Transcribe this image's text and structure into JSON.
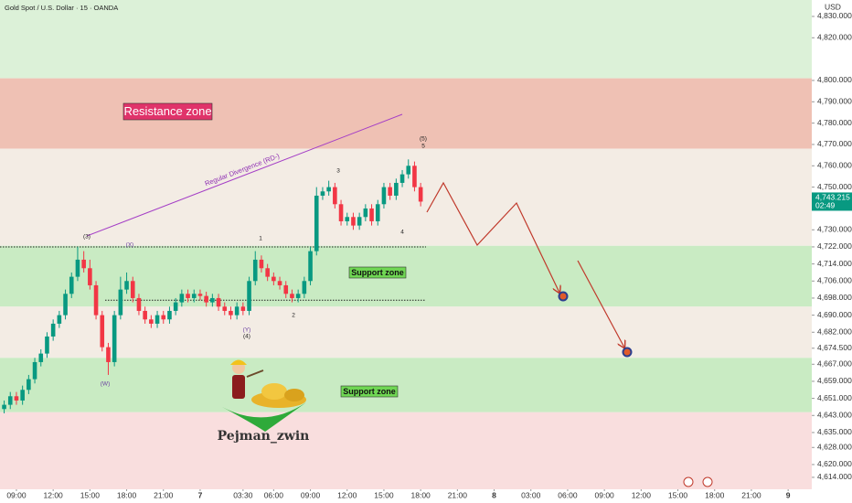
{
  "chart_data": {
    "type": "candlestick",
    "title": "Gold Spot / U.S. Dollar · 15 · OANDA",
    "currency": "USD",
    "up_color": "#089981",
    "down_color": "#f23645",
    "xlim": [
      -1.34,
      64.93
    ],
    "ylim": [
      4608.4,
      4837.7
    ],
    "xticks": [
      {
        "value": 0,
        "label": "09:00"
      },
      {
        "value": 3,
        "label": "12:00"
      },
      {
        "value": 6,
        "label": "15:00"
      },
      {
        "value": 9,
        "label": "18:00"
      },
      {
        "value": 12,
        "label": "21:00"
      },
      {
        "value": 15,
        "label": "7"
      },
      {
        "value": 18.5,
        "label": "03:30"
      },
      {
        "value": 21,
        "label": "06:00"
      },
      {
        "value": 24,
        "label": "09:00"
      },
      {
        "value": 27,
        "label": "12:00"
      },
      {
        "value": 30,
        "label": "15:00"
      },
      {
        "value": 33,
        "label": "18:00"
      },
      {
        "value": 36,
        "label": "21:00"
      },
      {
        "value": 39,
        "label": "8"
      },
      {
        "value": 42,
        "label": "03:00"
      },
      {
        "value": 45,
        "label": "06:00"
      },
      {
        "value": 48,
        "label": "09:00"
      },
      {
        "value": 51,
        "label": "12:00"
      },
      {
        "value": 54,
        "label": "15:00"
      },
      {
        "value": 57,
        "label": "18:00"
      },
      {
        "value": 60,
        "label": "21:00"
      },
      {
        "value": 63,
        "label": "9"
      }
    ],
    "yticks": [
      {
        "value": 4830,
        "label": "4,830.000"
      },
      {
        "value": 4820,
        "label": "4,820.000"
      },
      {
        "value": 4800,
        "label": "4,800.000"
      },
      {
        "value": 4790,
        "label": "4,790.000"
      },
      {
        "value": 4780,
        "label": "4,780.000"
      },
      {
        "value": 4770,
        "label": "4,770.000"
      },
      {
        "value": 4760,
        "label": "4,760.000"
      },
      {
        "value": 4750,
        "label": "4,750.000"
      },
      {
        "value": 4730,
        "label": "4,730.000"
      },
      {
        "value": 4722,
        "label": "4,722.000"
      },
      {
        "value": 4714,
        "label": "4,714.000"
      },
      {
        "value": 4706,
        "label": "4,706.000"
      },
      {
        "value": 4698,
        "label": "4,698.000"
      },
      {
        "value": 4690,
        "label": "4,690.000"
      },
      {
        "value": 4682,
        "label": "4,682.000"
      },
      {
        "value": 4674.5,
        "label": "4,674.500"
      },
      {
        "value": 4667,
        "label": "4,667.000"
      },
      {
        "value": 4659,
        "label": "4,659.000"
      },
      {
        "value": 4651,
        "label": "4,651.000"
      },
      {
        "value": 4643,
        "label": "4,643.000"
      },
      {
        "value": 4635,
        "label": "4,635.000"
      },
      {
        "value": 4628,
        "label": "4,628.000"
      },
      {
        "value": 4620,
        "label": "4,620.000"
      },
      {
        "value": 4614,
        "label": "4,614.000"
      }
    ],
    "last_price": {
      "value": 4743.215,
      "label": "4,743.215"
    },
    "countdown": "02:49",
    "zones": [
      {
        "from": 4801,
        "to": 4837.7,
        "color": "#dcf1d8"
      },
      {
        "from": 4768,
        "to": 4801,
        "color": "#efc1b4",
        "label": "Resistance zone"
      },
      {
        "from": 4722.5,
        "to": 4768,
        "color": "#f3ece4"
      },
      {
        "from": 4694,
        "to": 4722.5,
        "color": "#c9ebc3",
        "label": "Support zone"
      },
      {
        "from": 4670,
        "to": 4694,
        "color": "#f3ece4"
      },
      {
        "from": 4644.5,
        "to": 4670,
        "color": "#c9ebc3",
        "label": "Support zone"
      },
      {
        "from": 4608.4,
        "to": 4644.5,
        "color": "#f9dede"
      }
    ],
    "levels": [
      4722,
      4697
    ],
    "divergence_label": "Regular Divergence (RD-)",
    "wave_labels": [
      "(3)",
      "(X)",
      "1",
      "(Y)",
      "(4)",
      "2",
      "3",
      "4",
      "(5)",
      "5",
      "(W)"
    ],
    "author": "Pejman_zwin",
    "x": [
      -1,
      -0.5,
      0,
      0.5,
      1,
      1.5,
      2,
      2.5,
      3,
      3.5,
      4,
      4.5,
      5,
      5.5,
      6,
      6.5,
      7,
      7.5,
      8,
      8.5,
      9,
      9.5,
      10,
      10.5,
      11,
      11.5,
      12,
      12.5,
      13,
      13.5,
      14,
      14.5,
      15,
      15.5,
      16,
      16.5,
      17,
      17.5,
      18,
      18.5,
      19,
      19.5,
      20,
      20.5,
      21,
      21.5,
      22,
      22.5,
      23,
      23.5,
      24,
      24.5,
      25,
      25.5,
      26,
      26.5,
      27,
      27.5,
      28,
      28.5,
      29,
      29.5,
      30,
      30.5,
      31,
      31.5,
      32,
      32.5,
      33
    ],
    "open": [
      4646,
      4648,
      4652,
      4650,
      4655,
      4660,
      4668,
      4672,
      4680,
      4686,
      4690,
      4700,
      4708,
      4716,
      4712,
      4704,
      4690,
      4675,
      4668,
      4690,
      4702,
      4706,
      4698,
      4692,
      4688,
      4686,
      4690,
      4688,
      4692,
      4696,
      4700,
      4698,
      4700,
      4699,
      4696,
      4698,
      4694,
      4692,
      4690,
      4694,
      4692,
      4706,
      4716,
      4712,
      4708,
      4706,
      4704,
      4700,
      4698,
      4700,
      4706,
      4720,
      4746,
      4748,
      4750,
      4742,
      4734,
      4736,
      4732,
      4736,
      4740,
      4734,
      4742,
      4750,
      4746,
      4752,
      4756,
      4760,
      4750
    ],
    "high": [
      4650,
      4654,
      4654,
      4657,
      4662,
      4670,
      4674,
      4682,
      4688,
      4692,
      4702,
      4710,
      4722,
      4720,
      4716,
      4706,
      4692,
      4677,
      4692,
      4708,
      4710,
      4708,
      4700,
      4694,
      4690,
      4692,
      4692,
      4694,
      4698,
      4702,
      4702,
      4702,
      4702,
      4701,
      4700,
      4700,
      4696,
      4694,
      4696,
      4696,
      4708,
      4720,
      4718,
      4714,
      4710,
      4708,
      4706,
      4702,
      4702,
      4708,
      4722,
      4750,
      4750,
      4753,
      4752,
      4744,
      4738,
      4738,
      4738,
      4742,
      4742,
      4744,
      4752,
      4752,
      4754,
      4758,
      4763,
      4762,
      4752
    ],
    "low": [
      4644,
      4646,
      4648,
      4648,
      4653,
      4658,
      4666,
      4670,
      4678,
      4684,
      4688,
      4698,
      4706,
      4710,
      4702,
      4688,
      4673,
      4662,
      4666,
      4688,
      4700,
      4696,
      4690,
      4686,
      4684,
      4684,
      4686,
      4686,
      4690,
      4694,
      4696,
      4696,
      4697,
      4694,
      4694,
      4692,
      4690,
      4688,
      4688,
      4690,
      4690,
      4704,
      4710,
      4706,
      4704,
      4702,
      4698,
      4696,
      4696,
      4698,
      4704,
      4718,
      4744,
      4746,
      4740,
      4732,
      4732,
      4730,
      4730,
      4734,
      4732,
      4732,
      4740,
      4744,
      4744,
      4750,
      4754,
      4748,
      4741
    ],
    "close": [
      4648,
      4652,
      4650,
      4655,
      4660,
      4668,
      4672,
      4680,
      4686,
      4690,
      4700,
      4708,
      4716,
      4712,
      4704,
      4690,
      4675,
      4668,
      4690,
      4702,
      4706,
      4698,
      4692,
      4688,
      4686,
      4690,
      4688,
      4692,
      4696,
      4700,
      4698,
      4700,
      4699,
      4696,
      4698,
      4694,
      4692,
      4690,
      4694,
      4692,
      4706,
      4716,
      4712,
      4708,
      4706,
      4704,
      4700,
      4698,
      4700,
      4706,
      4720,
      4746,
      4748,
      4750,
      4742,
      4734,
      4736,
      4732,
      4736,
      4740,
      4734,
      4742,
      4750,
      4746,
      4752,
      4756,
      4760,
      4750,
      4743.215
    ]
  }
}
